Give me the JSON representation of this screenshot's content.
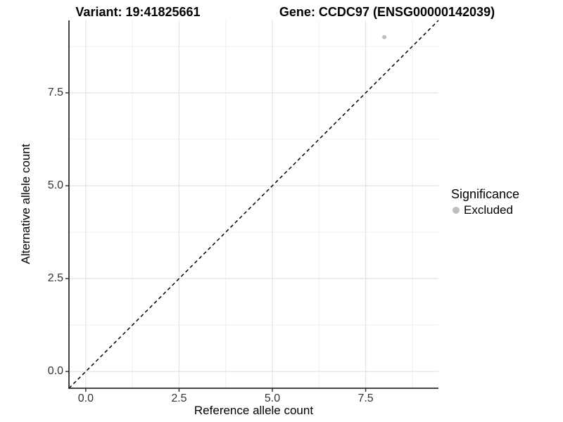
{
  "chart_data": {
    "type": "scatter",
    "variant_title": "Variant: 19:41825661",
    "gene_title": "Gene: CCDC97 (ENSG00000142039)",
    "xlabel": "Reference allele count",
    "ylabel": "Alternative allele count",
    "xlim": [
      -0.45,
      9.45
    ],
    "ylim": [
      -0.45,
      9.45
    ],
    "major_ticks": [
      0,
      2.5,
      5,
      7.5
    ],
    "tick_labels": [
      "0.0",
      "2.5",
      "5.0",
      "7.5"
    ],
    "minor_ticks": [
      1.25,
      3.75,
      6.25,
      8.75
    ],
    "grid": "major+minor",
    "points": [
      {
        "x": 8,
        "y": 9,
        "significance": "Excluded",
        "color": "#bebebe",
        "radius": 3
      }
    ],
    "identity_line": {
      "style": "dashed",
      "color": "#000000",
      "slope": 1,
      "intercept": 0
    },
    "legend": {
      "position": "right",
      "title": "Significance",
      "items": [
        {
          "label": "Excluded",
          "color": "#bebebe"
        }
      ]
    },
    "colors": {
      "grid_major": "#e4e4e4",
      "grid_minor": "#f0f0f0",
      "axis_line": "#2e2e2e",
      "tick_mark": "#333333"
    }
  }
}
